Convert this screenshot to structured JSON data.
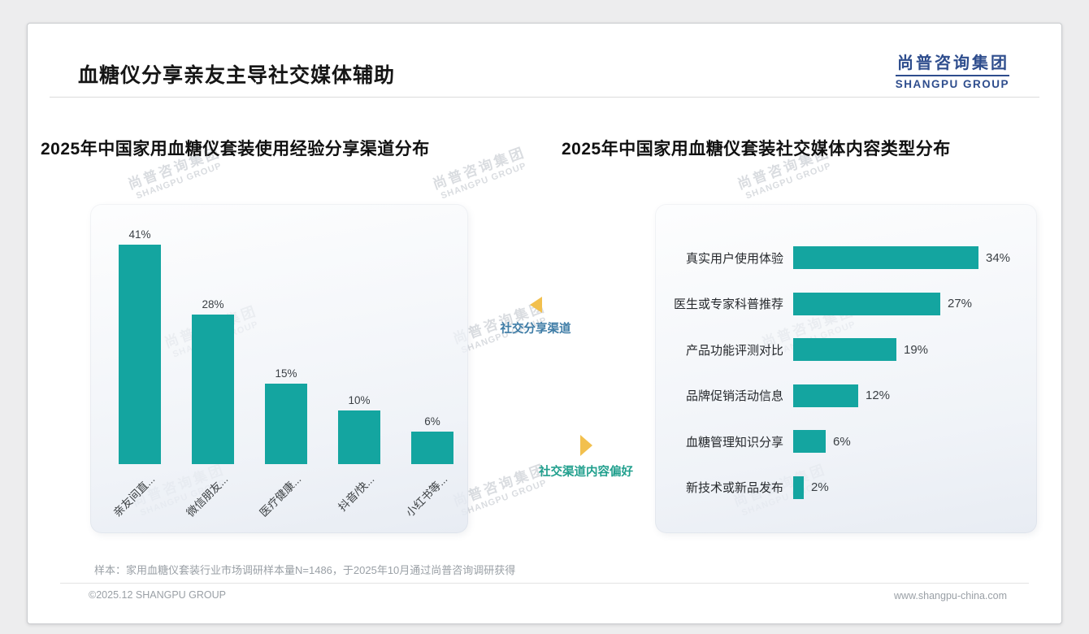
{
  "page": {
    "title": "血糖仪分享亲友主导社交媒体辅助",
    "footer_note": "样本：家用血糖仪套装行业市场调研样本量N=1486，于2025年10月通过尚普咨询调研获得",
    "copyright": "©2025.12 SHANGPU GROUP",
    "website": "www.shangpu-china.com"
  },
  "brand": {
    "name_cn": "尚普咨询集团",
    "name_en": "SHANGPU GROUP",
    "color": "#2e4d8d"
  },
  "watermark": {
    "line1": "尚普咨询集团",
    "line2": "SHANGPU GROUP"
  },
  "annotations": {
    "share_channel": {
      "label": "社交分享渠道",
      "arrow": "left",
      "arrow_color": "#f2c04e",
      "text_color": "#3e7ca6"
    },
    "content_preference": {
      "label": "社交渠道内容偏好",
      "arrow": "right",
      "arrow_color": "#f2c04e",
      "text_color": "#22a08e"
    }
  },
  "chart_data": [
    {
      "type": "bar",
      "orientation": "vertical",
      "title": "2025年中国家用血糖仪套装使用经验分享渠道分布",
      "categories": [
        "亲友间直...",
        "微信朋友...",
        "医疗健康...",
        "抖音/快...",
        "小红书等..."
      ],
      "values": [
        41,
        28,
        15,
        10,
        6
      ],
      "unit": "%",
      "bar_color": "#14a5a0",
      "ylim": [
        0,
        45
      ],
      "grid": false,
      "legend": "none"
    },
    {
      "type": "bar",
      "orientation": "horizontal",
      "title": "2025年中国家用血糖仪套装社交媒体内容类型分布",
      "categories": [
        "真实用户使用体验",
        "医生或专家科普推荐",
        "产品功能评测对比",
        "品牌促销活动信息",
        "血糖管理知识分享",
        "新技术或新品发布"
      ],
      "values": [
        34,
        27,
        19,
        12,
        6,
        2
      ],
      "unit": "%",
      "bar_color": "#14a5a0",
      "xlim": [
        0,
        40
      ],
      "grid": false,
      "legend": "none"
    }
  ]
}
